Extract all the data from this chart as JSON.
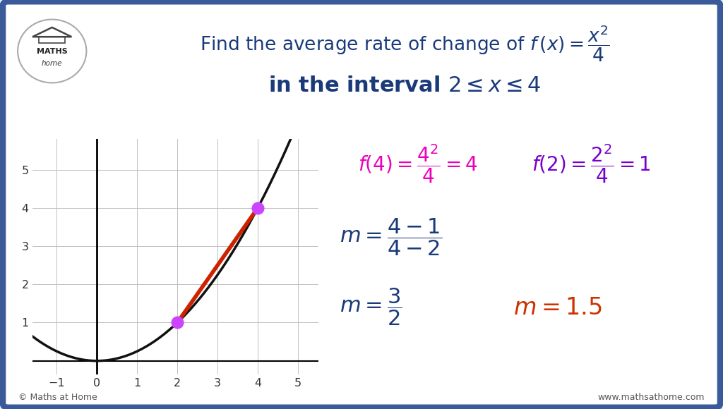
{
  "bg_color": "#e8eef8",
  "border_color": "#3a5a9a",
  "title_color": "#1a3a7a",
  "magenta": "#ee00bb",
  "purple": "#7700cc",
  "red_orange": "#cc3300",
  "dark_blue": "#1a3a7a",
  "grid_color": "#c0c0c0",
  "curve_color": "#111111",
  "point_color": "#cc44ff",
  "secant_color": "#cc2200",
  "xlim": [
    -1.6,
    5.5
  ],
  "ylim": [
    -0.35,
    5.8
  ],
  "x_ticks": [
    -1,
    0,
    1,
    2,
    3,
    4,
    5
  ],
  "y_ticks": [
    1,
    2,
    3,
    4,
    5
  ],
  "footer_left": "© Maths at Home",
  "footer_right": "www.mathsathome.com"
}
